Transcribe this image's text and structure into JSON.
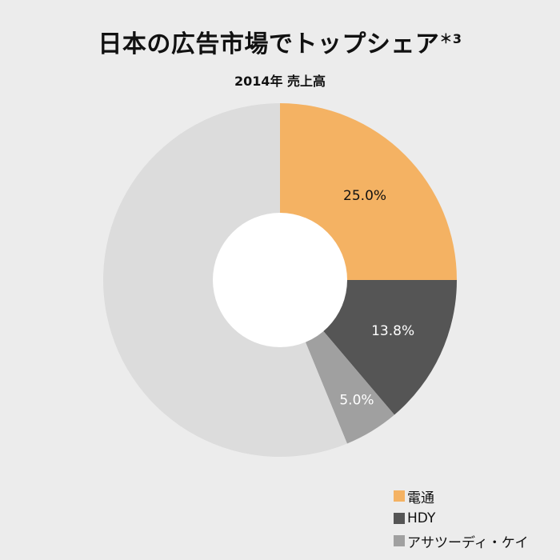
{
  "chart_data": {
    "type": "pie",
    "title": "日本の広告市場でトップシェア",
    "title_note": "＊3",
    "subtitle": "2014年 売上高",
    "slices": [
      {
        "name": "電通",
        "value": 25.0,
        "label": "25.0%",
        "color": "#f4b263"
      },
      {
        "name": "HDY",
        "value": 13.8,
        "label": "13.8%",
        "color": "#555555"
      },
      {
        "name": "アサツーディ・ケイ",
        "value": 5.0,
        "label": "5.0%",
        "color": "#a0a0a0"
      },
      {
        "name": "",
        "value": 56.2,
        "label": "",
        "color": "#dcdcdc"
      }
    ],
    "donut": true,
    "legend_position": "bottom-right",
    "legend": [
      "電通",
      "HDY",
      "アサツーディ・ケイ"
    ]
  }
}
